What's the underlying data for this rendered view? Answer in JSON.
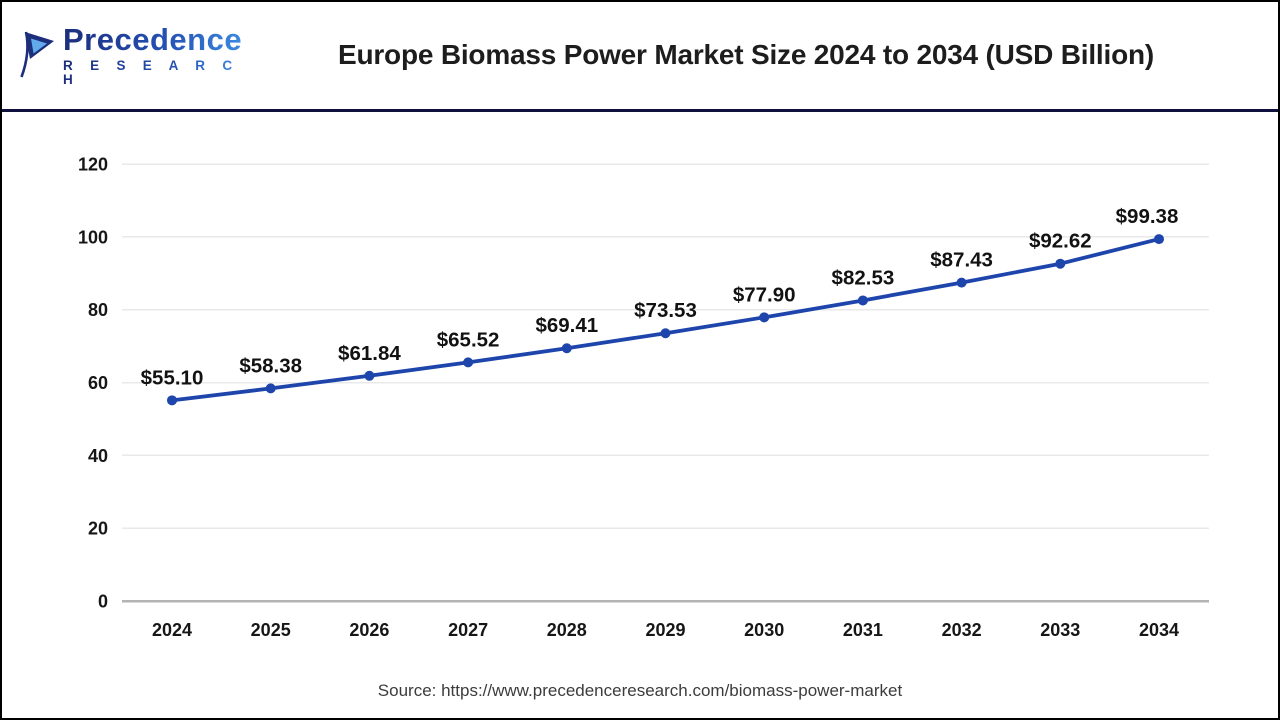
{
  "header": {
    "logo_line1": "Precedence",
    "logo_line2": "R E S E A R C H",
    "title": "Europe Biomass Power Market Size 2024 to 2034 (USD Billion)"
  },
  "footer": {
    "source": "Source: https://www.precedenceresearch.com/biomass-power-market"
  },
  "colors": {
    "line": "#1e45ab",
    "marker": "#1e45ab",
    "grid": "#e9e9e9",
    "axis_line": "#b3b3b3",
    "tick_label": "#161616",
    "data_label": "#121212",
    "separator": "#10103f",
    "logo_dark": "#1c2e7c",
    "logo_light": "#3f8de4"
  },
  "chart_data": {
    "type": "line",
    "title": "Europe Biomass Power Market Size 2024 to 2034 (USD Billion)",
    "categories": [
      "2024",
      "2025",
      "2026",
      "2027",
      "2028",
      "2029",
      "2030",
      "2031",
      "2032",
      "2033",
      "2034"
    ],
    "values": [
      55.1,
      58.38,
      61.84,
      65.52,
      69.41,
      73.53,
      77.9,
      82.53,
      87.43,
      92.62,
      99.38
    ],
    "labels": [
      "$55.10",
      "$58.38",
      "$61.84",
      "$65.52",
      "$69.41",
      "$73.53",
      "$77.90",
      "$82.53",
      "$87.43",
      "$92.62",
      "$99.38"
    ],
    "xlabel": "",
    "ylabel": "",
    "ylim": [
      0,
      120
    ],
    "yticks": [
      0,
      20,
      40,
      60,
      80,
      100,
      120
    ],
    "grid": true,
    "legend": false,
    "data_labels": true
  }
}
